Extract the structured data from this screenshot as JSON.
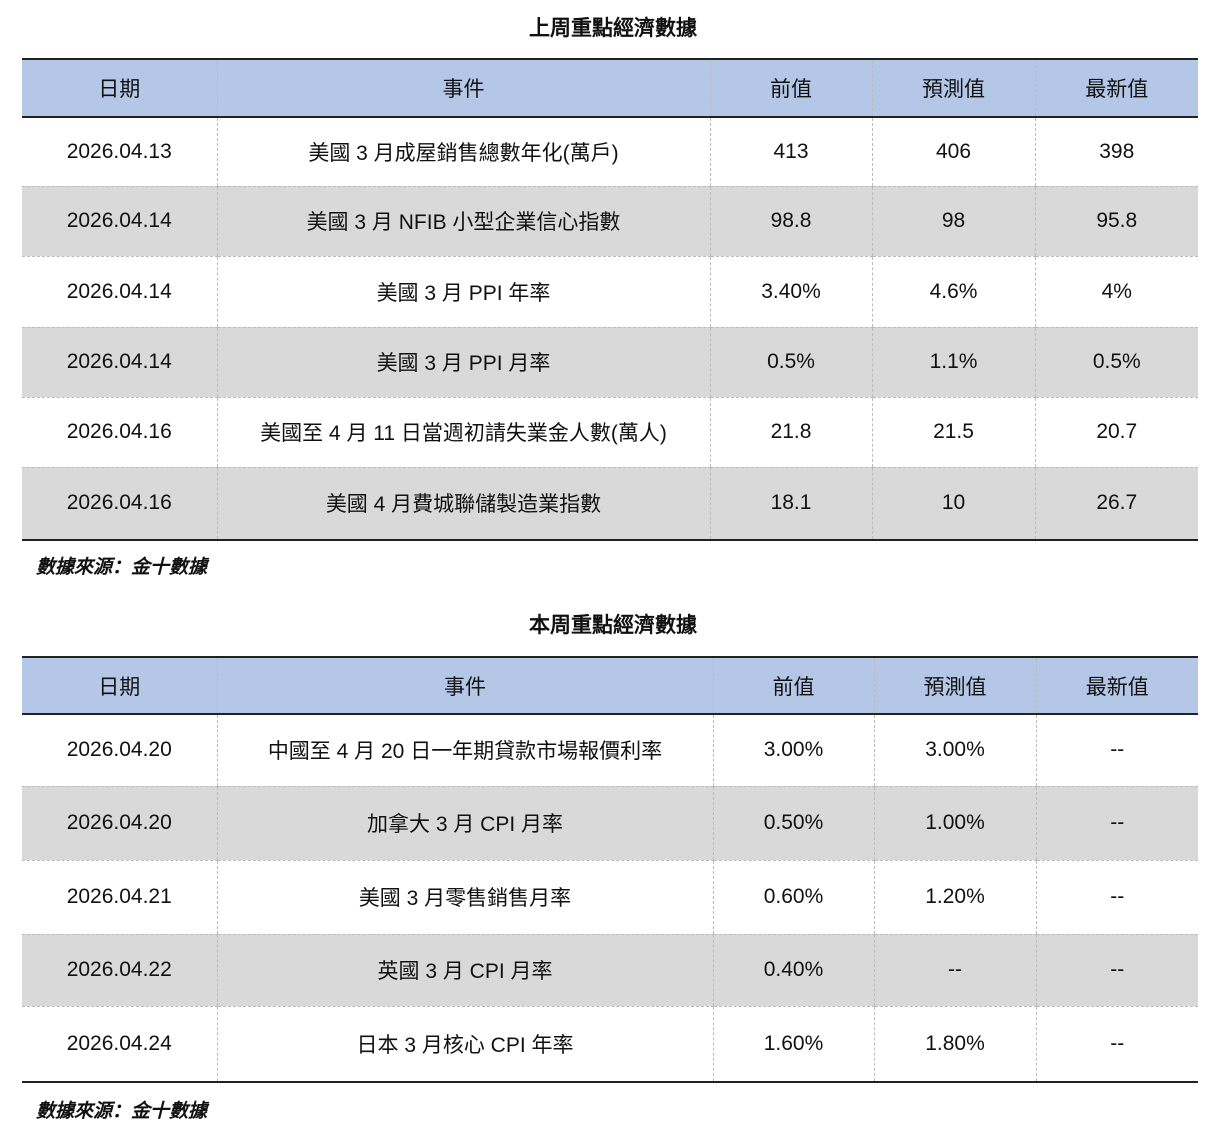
{
  "tables": [
    {
      "title": "上周重點經濟數據",
      "header": [
        "日期",
        "事件",
        "前值",
        "預測值",
        "最新值"
      ],
      "rows": [
        [
          "2026.04.13",
          "美國 3 月成屋銷售總數年化(萬戶)",
          "413",
          "406",
          "398"
        ],
        [
          "2026.04.14",
          "美國 3 月 NFIB 小型企業信心指數",
          "98.8",
          "98",
          "95.8"
        ],
        [
          "2026.04.14",
          "美國 3 月 PPI 年率",
          "3.40%",
          "4.6%",
          "4%"
        ],
        [
          "2026.04.14",
          "美國 3 月 PPI 月率",
          "0.5%",
          "1.1%",
          "0.5%"
        ],
        [
          "2026.04.16",
          "美國至 4 月 11 日當週初請失業金人數(萬人)",
          "21.8",
          "21.5",
          "20.7"
        ],
        [
          "2026.04.16",
          "美國 4 月費城聯儲製造業指數",
          "18.1",
          "10",
          "26.7"
        ]
      ],
      "source": "數據來源：金十數據"
    },
    {
      "title": "本周重點經濟數據",
      "header": [
        "日期",
        "事件",
        "前值",
        "預測值",
        "最新值"
      ],
      "rows": [
        [
          "2026.04.20",
          "中國至 4 月 20 日一年期貸款市場報價利率",
          "3.00%",
          "3.00%",
          "--"
        ],
        [
          "2026.04.20",
          "加拿大 3 月 CPI 月率",
          "0.50%",
          "1.00%",
          "--"
        ],
        [
          "2026.04.21",
          "美國 3 月零售銷售月率",
          "0.60%",
          "1.20%",
          "--"
        ],
        [
          "2026.04.22",
          "英國 3 月 CPI 月率",
          "0.40%",
          "--",
          "--"
        ],
        [
          "2026.04.24",
          "日本 3 月核心 CPI 年率",
          "1.60%",
          "1.80%",
          "--"
        ]
      ],
      "source": "數據來源：金十數據"
    }
  ]
}
